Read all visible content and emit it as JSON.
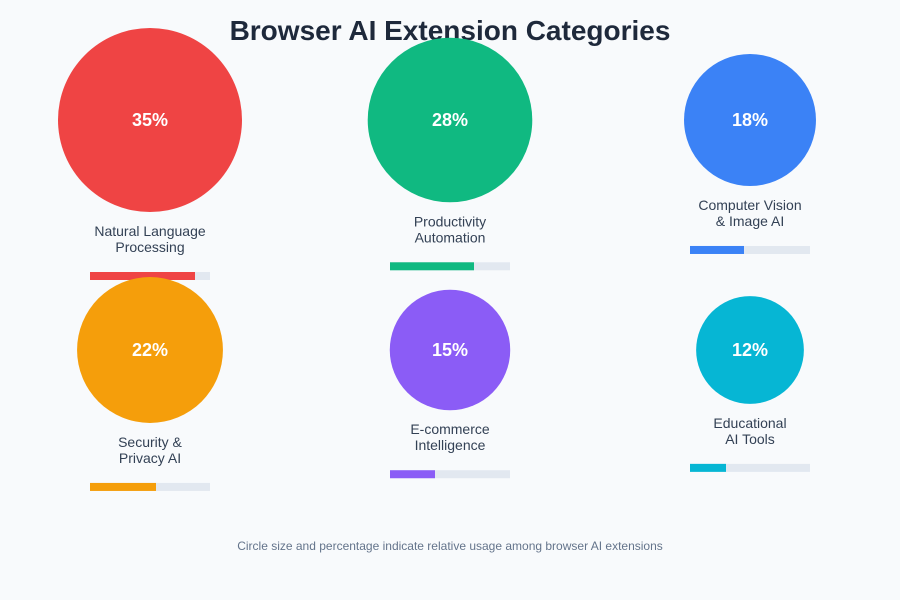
{
  "title": "Browser AI Extension Categories",
  "footnote": "Circle size and percentage indicate relative usage among browser AI extensions",
  "chart_data": {
    "type": "bubble",
    "title": "Browser AI Extension Categories",
    "unit": "%",
    "bar_max": 40,
    "categories": [
      {
        "label_lines": [
          "Natural Language",
          "Processing"
        ],
        "value": 35,
        "display": "35%",
        "color": "#ef4444"
      },
      {
        "label_lines": [
          "Productivity",
          "Automation"
        ],
        "value": 28,
        "display": "28%",
        "color": "#10b981"
      },
      {
        "label_lines": [
          "Computer Vision",
          "& Image AI"
        ],
        "value": 18,
        "display": "18%",
        "color": "#3b82f6"
      },
      {
        "label_lines": [
          "Security &",
          "Privacy AI"
        ],
        "value": 22,
        "display": "22%",
        "color": "#f59e0b"
      },
      {
        "label_lines": [
          "E-commerce",
          "Intelligence"
        ],
        "value": 15,
        "display": "15%",
        "color": "#8b5cf6"
      },
      {
        "label_lines": [
          "Educational",
          "AI Tools"
        ],
        "value": 12,
        "display": "12%",
        "color": "#06b6d4"
      }
    ]
  },
  "colors": {
    "background": "#f8fafc",
    "title": "#1e293b",
    "label": "#334155",
    "footnote": "#64748b",
    "bar_track": "#e2e8f0"
  }
}
